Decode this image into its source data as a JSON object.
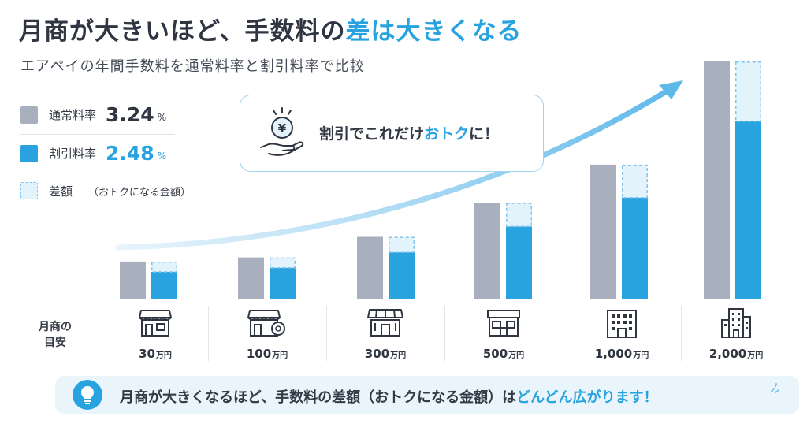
{
  "header": {
    "title_main": "月商が大きいほど、手数料の",
    "title_highlight": "差は大きくなる",
    "subtitle": "エアペイの年間手数料を通常料率と割引料率で比較"
  },
  "legend": {
    "normal": {
      "label": "通常料率",
      "value": "3.24",
      "unit": "%"
    },
    "discount": {
      "label": "割引料率",
      "value": "2.48",
      "unit": "%"
    },
    "difference": {
      "label": "差額",
      "note": "（おトクになる金額）"
    }
  },
  "callout": {
    "text_before": "割引でこれだけ",
    "text_highlight": "おトク",
    "text_after": "に！"
  },
  "category_axis": {
    "label_line1": "月商の",
    "label_line2": "目安"
  },
  "categories": [
    {
      "value": "30",
      "unit": "万円",
      "icon": "small-shop-icon"
    },
    {
      "value": "100",
      "unit": "万円",
      "icon": "shop-with-coin-icon"
    },
    {
      "value": "300",
      "unit": "万円",
      "icon": "awning-shop-icon"
    },
    {
      "value": "500",
      "unit": "万円",
      "icon": "store-icon"
    },
    {
      "value": "1,000",
      "unit": "万円",
      "icon": "office-building-icon"
    },
    {
      "value": "2,000",
      "unit": "万円",
      "icon": "tall-building-icon"
    }
  ],
  "footer": {
    "icon": "lightbulb-icon",
    "text_main": "月商が大きくなるほど、手数料の差額（おトクになる金額）は",
    "text_highlight": "どんどん広がります！"
  },
  "colors": {
    "normal": "#a8b0bd",
    "discount": "#29a3e0",
    "difference_fill": "#e3f3fb",
    "difference_border": "#7fc4ea",
    "text": "#2f3642"
  },
  "chart_data": {
    "type": "bar",
    "categories": [
      "30万円",
      "100万円",
      "300万円",
      "500万円",
      "1,000万円",
      "2,000万円"
    ],
    "series": [
      {
        "name": "通常料率",
        "rate": 3.24,
        "values": [
          0.36,
          0.4,
          0.6,
          0.93,
          1.3,
          2.3
        ]
      },
      {
        "name": "割引料率",
        "rate": 2.48,
        "values": [
          0.26,
          0.3,
          0.45,
          0.7,
          0.98,
          1.72
        ]
      }
    ],
    "difference_label": "差額",
    "title": "月商が大きいほど、手数料の差は大きくなる",
    "trend_arrow": true
  }
}
